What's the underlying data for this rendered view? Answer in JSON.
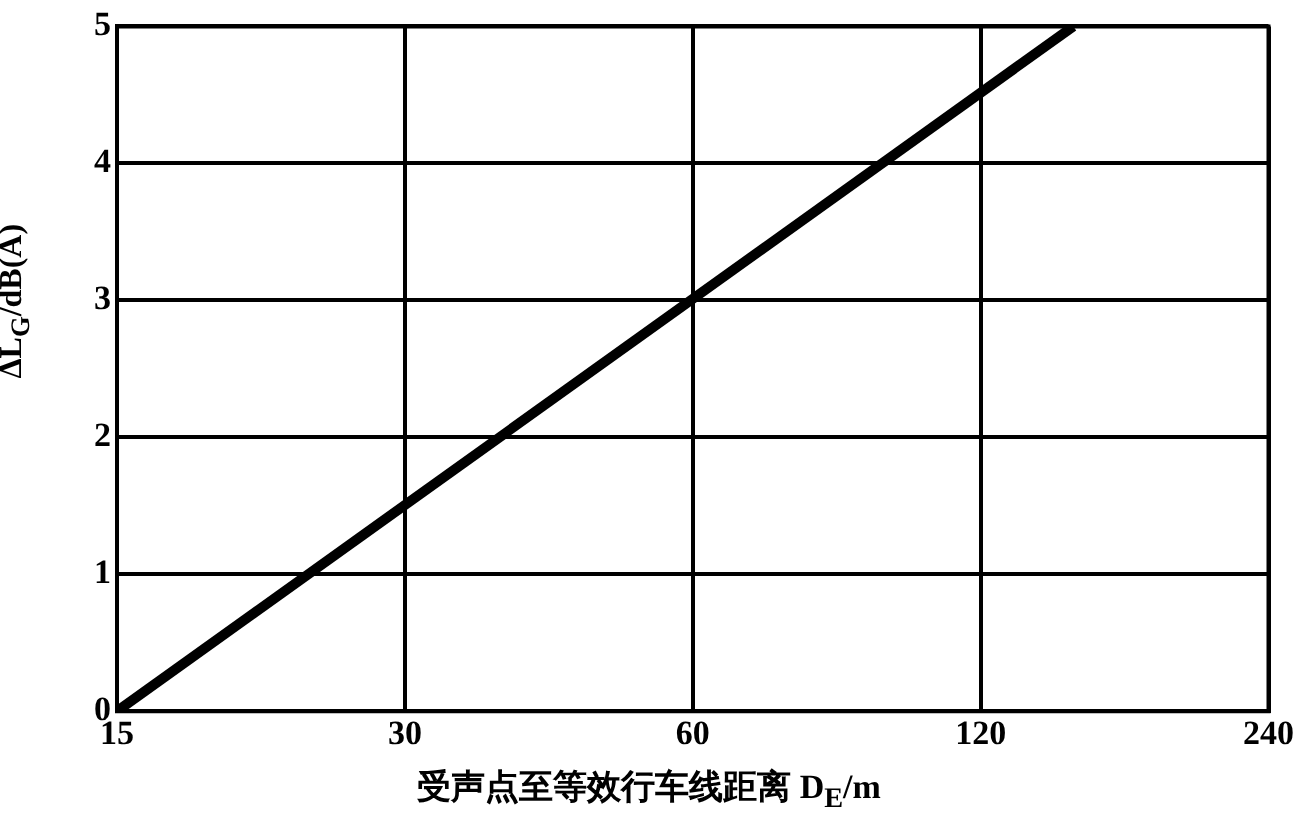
{
  "chart_data": {
    "type": "line",
    "xlabel": "受声点至等效行车线距离 D$_{E}$/m",
    "ylabel": "ΔL$_{G}$/dB(A)",
    "log": "x",
    "x": [
      15,
      150
    ],
    "series": [
      {
        "color": "#000000",
        "values": [
          0,
          5
        ]
      }
    ],
    "xlim": [
      15,
      240
    ],
    "xticks": [
      15,
      30,
      60,
      120,
      240
    ],
    "ylim": [
      0,
      5
    ],
    "yticks": [
      0,
      1,
      2,
      3,
      4,
      5
    ],
    "grid": true,
    "legend": false,
    "marker": "none",
    "line_style": "solid"
  }
}
